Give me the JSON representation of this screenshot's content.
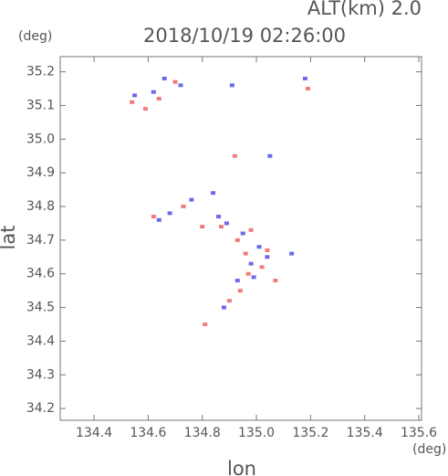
{
  "chart_data": {
    "type": "scatter",
    "title": "2018/10/19 02:26:00",
    "subtitle": "ALT(km) 2.0",
    "y_unit": "(deg)",
    "x_unit": "(deg)",
    "xlabel": "lon",
    "ylabel": "lat",
    "xlim": [
      134.275,
      135.61
    ],
    "ylim": [
      34.165,
      35.245
    ],
    "xticks": [
      134.4,
      134.6,
      134.8,
      {
        "value": 135,
        "label": "135.0"
      },
      135.2,
      135.4,
      135.6
    ],
    "yticks": [
      34.2,
      34.3,
      34.4,
      34.5,
      34.6,
      34.7,
      34.8,
      34.9,
      {
        "value": 35,
        "label": "35.0"
      },
      35.1,
      35.2
    ],
    "series": [
      {
        "color": "#f07a7a",
        "x": [
          134.54,
          134.64,
          134.7,
          134.59,
          135.19,
          134.92,
          134.62,
          134.73,
          134.8,
          134.87,
          134.93,
          134.96,
          135.02,
          134.97,
          134.9,
          134.94,
          135.07,
          134.81,
          134.98,
          135.04
        ],
        "values": [
          35.11,
          35.12,
          35.17,
          35.09,
          35.15,
          34.95,
          34.77,
          34.8,
          34.74,
          34.74,
          34.7,
          34.66,
          34.62,
          34.6,
          34.52,
          34.55,
          34.58,
          34.45,
          34.73,
          34.67
        ]
      },
      {
        "color": "#6a6ae8",
        "x": [
          134.55,
          134.62,
          134.66,
          134.72,
          135.18,
          134.91,
          135.05,
          134.64,
          134.68,
          134.76,
          134.84,
          134.89,
          134.95,
          135.01,
          135.04,
          134.98,
          134.93,
          134.88,
          135.13,
          134.99,
          134.86
        ],
        "values": [
          35.13,
          35.14,
          35.18,
          35.16,
          35.18,
          35.16,
          34.95,
          34.76,
          34.78,
          34.82,
          34.84,
          34.75,
          34.72,
          34.68,
          34.65,
          34.63,
          34.58,
          34.5,
          34.66,
          34.59,
          34.77
        ]
      }
    ]
  }
}
